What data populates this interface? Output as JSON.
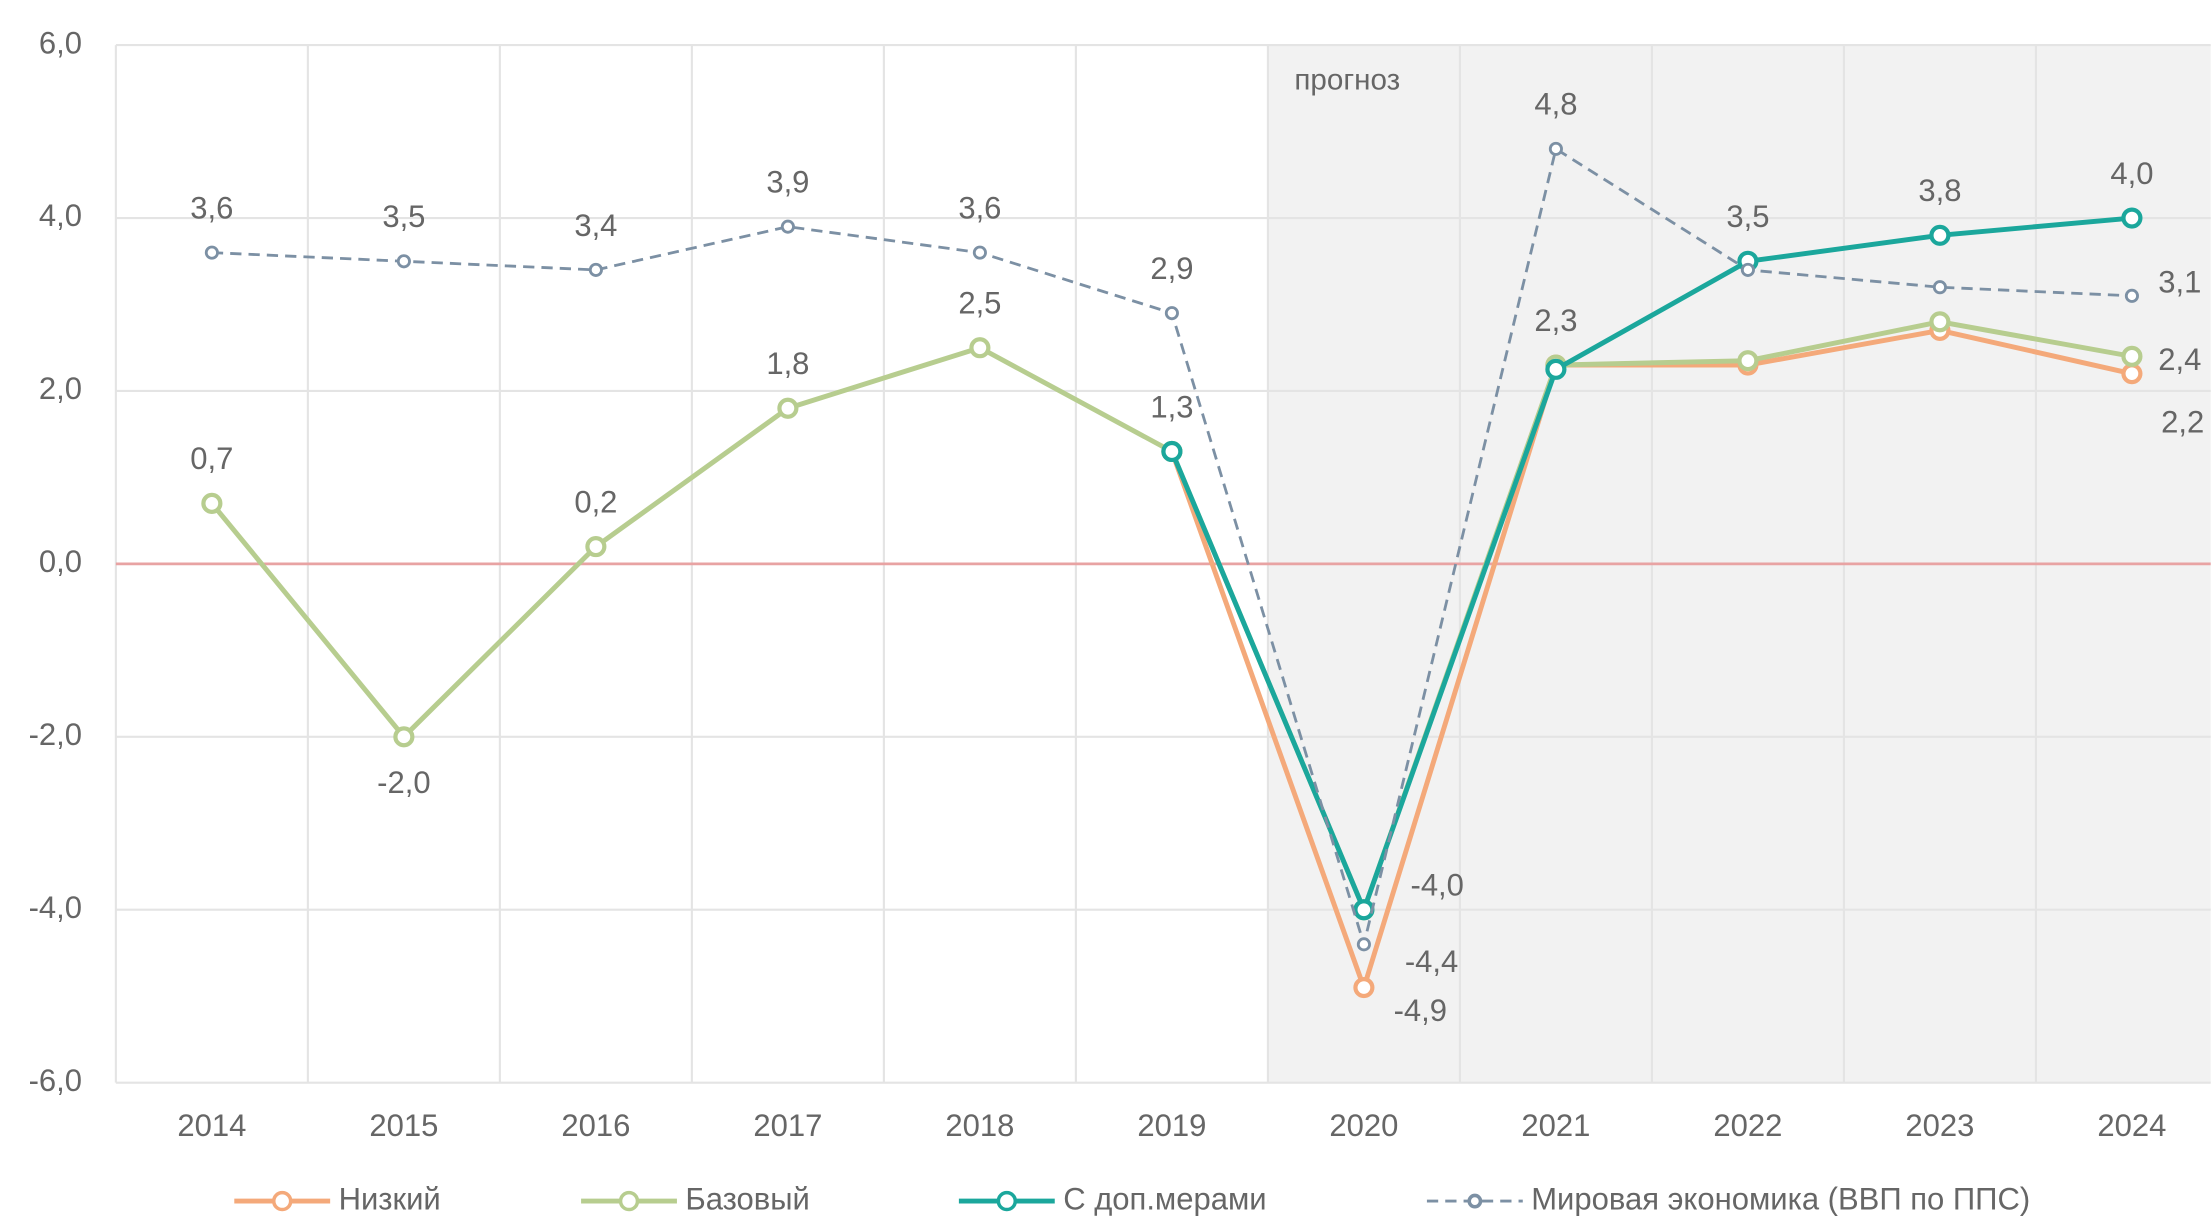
{
  "chart_data": {
    "type": "line",
    "annotation": "прогноз",
    "categories": [
      "2014",
      "2015",
      "2016",
      "2017",
      "2018",
      "2019",
      "2020",
      "2021",
      "2022",
      "2023",
      "2024"
    ],
    "ylim": [
      -6,
      6
    ],
    "yticks": [
      {
        "value": -6,
        "label": "-6,0"
      },
      {
        "value": -4,
        "label": "-4,0"
      },
      {
        "value": -2,
        "label": "-2,0"
      },
      {
        "value": 0,
        "label": "0,0"
      },
      {
        "value": 2,
        "label": "2,0"
      },
      {
        "value": 4,
        "label": "4,0"
      },
      {
        "value": 6,
        "label": "6,0"
      }
    ],
    "grid": true,
    "legend": "bottom",
    "series": [
      {
        "name": "Низкий",
        "color": "#f4a97a",
        "dashed": false,
        "values": [
          null,
          null,
          null,
          null,
          null,
          1.3,
          -4.9,
          2.3,
          2.3,
          2.7,
          2.2
        ],
        "value_labels": [
          null,
          null,
          null,
          null,
          null,
          null,
          "-4,9",
          null,
          null,
          null,
          "2,2"
        ]
      },
      {
        "name": "Базовый",
        "color": "#b7cd8f",
        "dashed": false,
        "values": [
          0.7,
          -2.0,
          0.2,
          1.8,
          2.5,
          1.3,
          -4.0,
          2.3,
          2.35,
          2.8,
          2.4
        ],
        "value_labels": [
          "0,7",
          "-2,0",
          "0,2",
          "1,8",
          "2,5",
          "1,3",
          "-4,0",
          "2,3",
          null,
          null,
          "2,4"
        ]
      },
      {
        "name": "С доп.мерами",
        "color": "#1ba79c",
        "dashed": false,
        "values": [
          null,
          null,
          null,
          null,
          null,
          1.3,
          -4.0,
          2.25,
          3.5,
          3.8,
          4.0
        ],
        "value_labels": [
          null,
          null,
          null,
          null,
          null,
          null,
          null,
          null,
          "3,5",
          "3,8",
          "4,0"
        ]
      },
      {
        "name": "Мировая экономика (ВВП по ППС)",
        "color": "#7c90a4",
        "dashed": true,
        "values": [
          3.6,
          3.5,
          3.4,
          3.9,
          3.6,
          2.9,
          -4.4,
          4.8,
          3.4,
          3.2,
          3.1
        ],
        "value_labels": [
          "3,6",
          "3,5",
          "3,4",
          "3,9",
          "3,6",
          "2,9",
          "-4,4",
          "4,8",
          null,
          null,
          "3,1"
        ]
      }
    ]
  }
}
